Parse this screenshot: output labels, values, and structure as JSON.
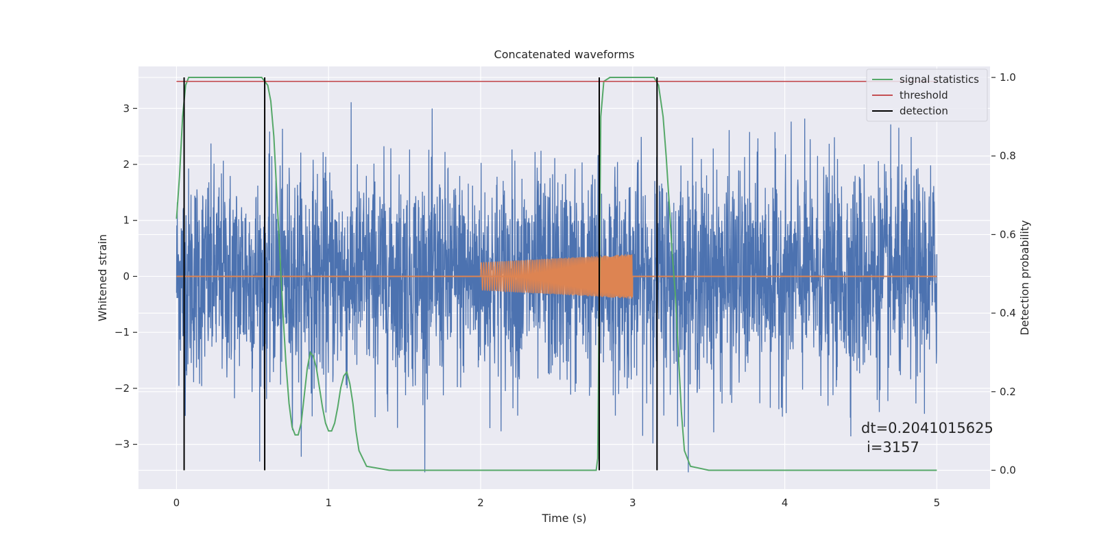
{
  "chart_data": {
    "type": "line",
    "title": "Concatenated waveforms",
    "xlabel": "Time (s)",
    "ylabel": "Whitened strain",
    "ylabel_right": "Detection probability",
    "xlim": [
      -0.25,
      5.35
    ],
    "ylim": [
      -3.8,
      3.75
    ],
    "ylim_right": [
      -0.048,
      1.028
    ],
    "x_ticks": [
      0,
      1,
      2,
      3,
      4,
      5
    ],
    "y_ticks": [
      -3,
      -2,
      -1,
      0,
      1,
      2,
      3
    ],
    "y_ticks_right": [
      0.0,
      0.2,
      0.4,
      0.6,
      0.8,
      1.0
    ],
    "x_tick_labels": [
      "0",
      "1",
      "2",
      "3",
      "4",
      "5"
    ],
    "y_tick_labels": [
      "−3",
      "−2",
      "−1",
      "0",
      "1",
      "2",
      "3"
    ],
    "y_tick_labels_right": [
      "0.0",
      "0.2",
      "0.4",
      "0.6",
      "0.8",
      "1.0"
    ],
    "grid": true,
    "legend_position": "top-right",
    "colors": {
      "background": "#eaeaf2",
      "grid": "#ffffff",
      "strain": "#4c72b0",
      "injected": "#dd8452",
      "statistics": "#55a868",
      "threshold": "#c44e52",
      "detection": "#000000"
    },
    "series": [
      {
        "name": "",
        "axis": "left",
        "description_kind": "whitened-noise",
        "x_range": [
          0,
          5
        ],
        "envelope_rms": 1.0,
        "spike_extremes": [
          3.37,
          -3.5
        ]
      },
      {
        "name": "",
        "axis": "left",
        "description_kind": "chirp",
        "x_range": [
          2.0,
          3.0
        ],
        "amplitude_start": 0.25,
        "amplitude_end": 0.4
      },
      {
        "name": "signal statistics",
        "axis": "right",
        "x": [
          0.0,
          0.02,
          0.04,
          0.06,
          0.08,
          0.12,
          0.5,
          0.56,
          0.6,
          0.62,
          0.64,
          0.66,
          0.68,
          0.7,
          0.72,
          0.74,
          0.76,
          0.78,
          0.8,
          0.82,
          0.84,
          0.86,
          0.88,
          0.9,
          0.92,
          0.94,
          0.96,
          0.98,
          1.0,
          1.02,
          1.04,
          1.06,
          1.08,
          1.1,
          1.12,
          1.14,
          1.16,
          1.18,
          1.2,
          1.25,
          1.4,
          2.0,
          2.76,
          2.77,
          2.78,
          2.79,
          2.81,
          2.85,
          3.1,
          3.14,
          3.17,
          3.2,
          3.22,
          3.24,
          3.26,
          3.28,
          3.3,
          3.32,
          3.34,
          3.38,
          3.5,
          4.0,
          5.0
        ],
        "y": [
          0.64,
          0.75,
          0.9,
          0.98,
          1.0,
          1.0,
          1.0,
          1.0,
          0.98,
          0.94,
          0.85,
          0.7,
          0.55,
          0.4,
          0.27,
          0.17,
          0.11,
          0.09,
          0.09,
          0.12,
          0.19,
          0.26,
          0.3,
          0.29,
          0.26,
          0.21,
          0.16,
          0.12,
          0.1,
          0.1,
          0.12,
          0.16,
          0.21,
          0.24,
          0.25,
          0.22,
          0.17,
          0.1,
          0.05,
          0.01,
          0.0,
          0.0,
          0.0,
          0.03,
          0.45,
          0.9,
          0.99,
          1.0,
          1.0,
          1.0,
          0.98,
          0.9,
          0.8,
          0.68,
          0.55,
          0.45,
          0.3,
          0.15,
          0.05,
          0.01,
          0.0,
          0.0,
          0.0
        ]
      },
      {
        "name": "threshold",
        "axis": "right",
        "x": [
          0,
          5
        ],
        "y": [
          0.99,
          0.99
        ]
      },
      {
        "name": "detection",
        "axis": "right",
        "x": [
          0.05,
          0.58,
          2.78,
          3.16
        ],
        "y_range": [
          0.0,
          1.0
        ]
      }
    ],
    "annotation": {
      "line1": "dt=0.2041015625",
      "line2": "i=3157"
    }
  }
}
